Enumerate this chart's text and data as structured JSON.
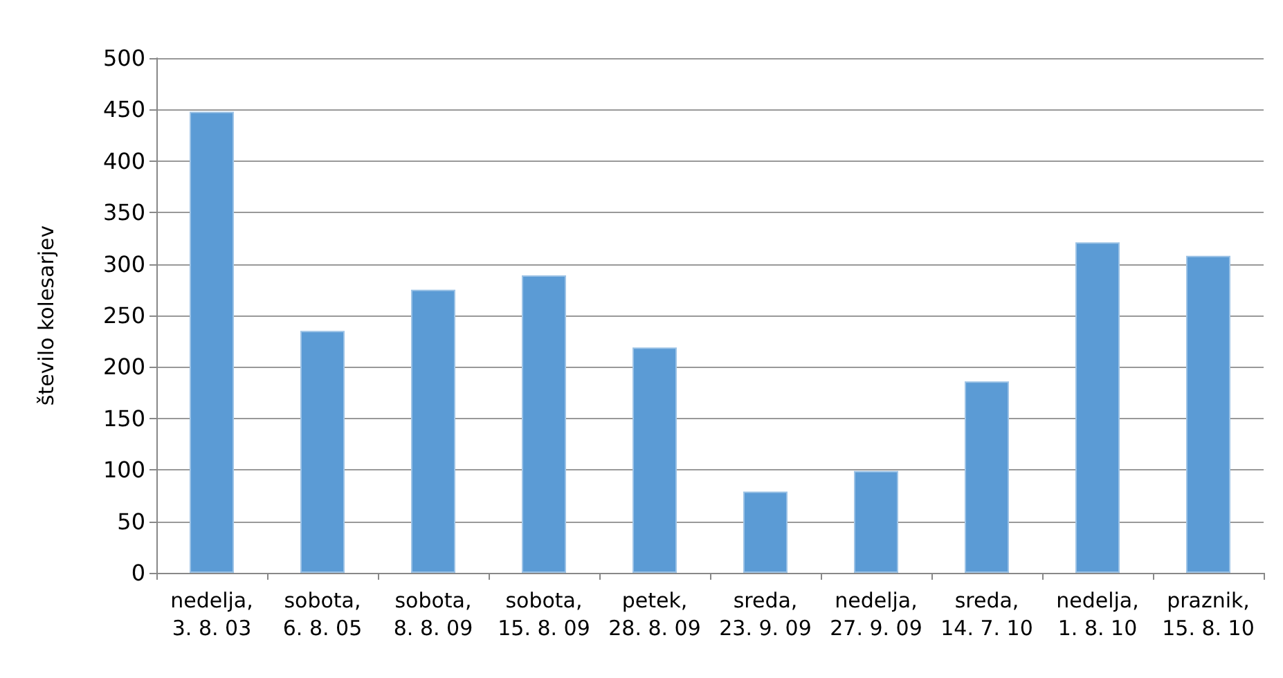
{
  "chart_data": {
    "type": "bar",
    "ylabel": "število kolesarjev",
    "categories": [
      "nedelja,\n3. 8. 03",
      "sobota,\n6. 8. 05",
      "sobota,\n8. 8. 09",
      "sobota,\n15. 8. 09",
      "petek,\n28. 8. 09",
      "sreda,\n23. 9. 09",
      "nedelja,\n27. 9. 09",
      "sreda,\n14. 7. 10",
      "nedelja,\n1. 8. 10",
      "praznik,\n15. 8. 10"
    ],
    "values": [
      448,
      235,
      275,
      289,
      219,
      79,
      99,
      186,
      321,
      308
    ],
    "color": "#5b9bd5",
    "ylim": [
      0,
      500
    ],
    "yticks": [
      0,
      50,
      100,
      150,
      200,
      250,
      300,
      350,
      400,
      450,
      500
    ],
    "grid": "y"
  }
}
